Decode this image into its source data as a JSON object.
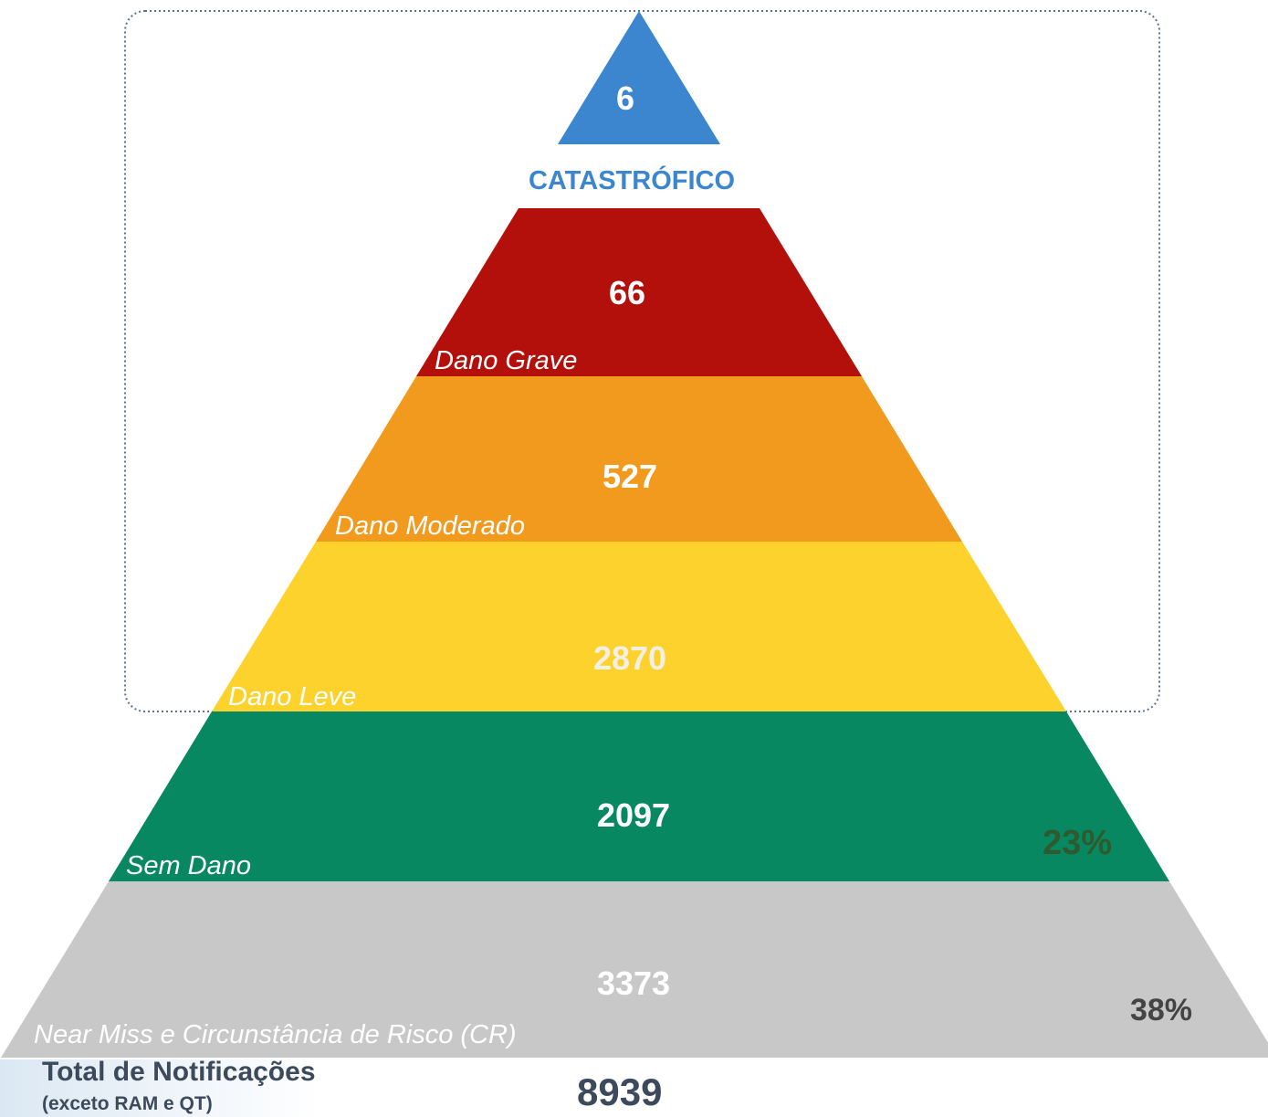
{
  "pyramid": {
    "levels": [
      {
        "value": 6,
        "label": "CATASTRÓFICO"
      },
      {
        "value": 66,
        "label": "Dano Grave"
      },
      {
        "value": 527,
        "label": "Dano Moderado"
      },
      {
        "value": 2870,
        "label": "Dano Leve"
      },
      {
        "value": 2097,
        "label": "Sem Dano",
        "percent": "23%"
      },
      {
        "value": 3373,
        "label": "Near Miss e Circunstância de Risco (CR)",
        "percent": "38%"
      }
    ],
    "total": {
      "title": "Total de Notificações",
      "note": "(exceto RAM e QT)",
      "value": 8939
    }
  }
}
